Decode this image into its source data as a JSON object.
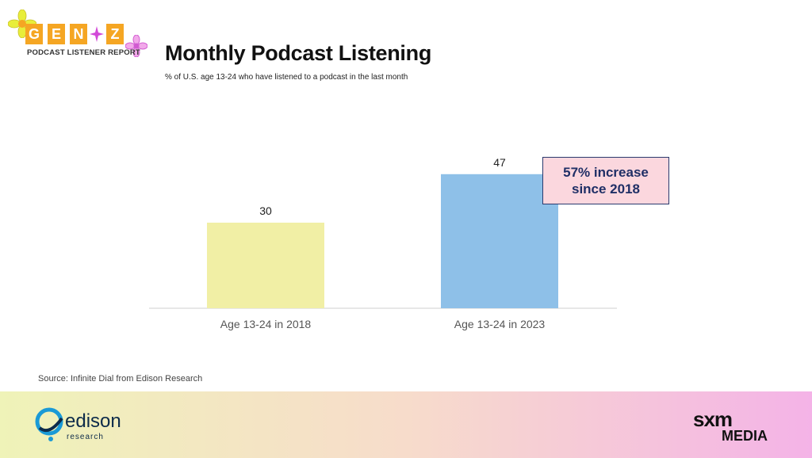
{
  "logo": {
    "letters": [
      "G",
      "E",
      "N",
      "Z"
    ],
    "subtitle": "PODCAST LISTENER REPORT",
    "accent_color": "#f5a623"
  },
  "chart_data": {
    "type": "bar",
    "title": "Monthly Podcast Listening",
    "subtitle": "% of U.S. age 13-24 who have listened to a podcast in the last month",
    "categories": [
      "Age 13-24 in 2018",
      "Age 13-24 in 2023"
    ],
    "values": [
      30,
      47
    ],
    "colors": [
      "#f1efa5",
      "#8ec0e8"
    ],
    "xlabel": "",
    "ylabel": "",
    "ylim": [
      0,
      50
    ],
    "grid": false,
    "legend": "none",
    "annotation": {
      "line1": "57% increase",
      "line2": "since 2018"
    }
  },
  "source": "Source: Infinite Dial from Edison Research",
  "footer": {
    "edison_word": "edison",
    "edison_sub": "research",
    "sxm_word": "sxm",
    "media_word": "MEDIA"
  }
}
